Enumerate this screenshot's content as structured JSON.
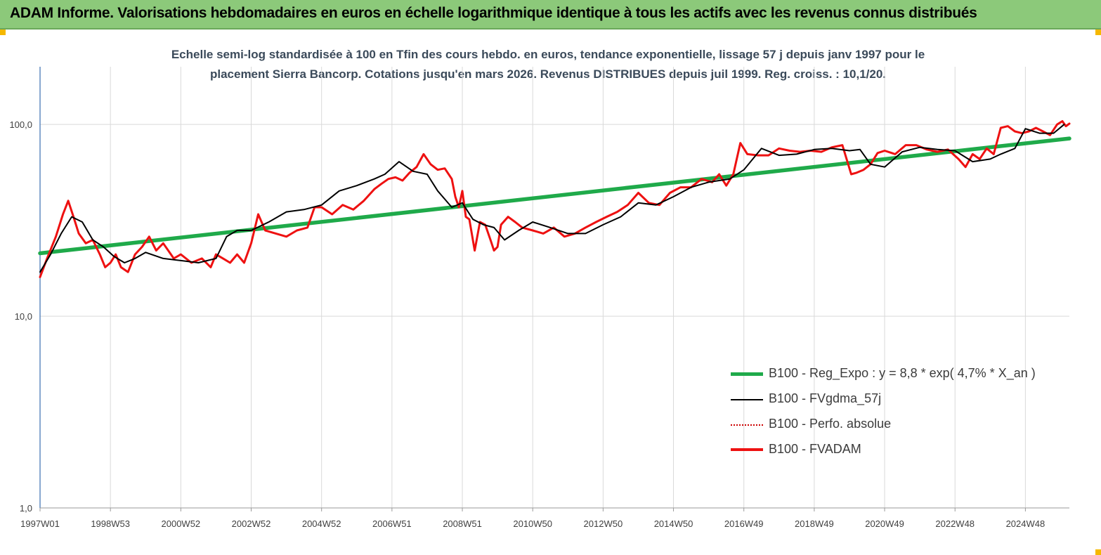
{
  "header": {
    "title": "ADAM Informe. Valorisations hebdomadaires en euros en échelle logarithmique identique à tous les actifs avec les revenus connus distribués"
  },
  "colors": {
    "header_bg": "#8cc97a",
    "regression": "#1faa4a",
    "fvgdma": "#000000",
    "fvadam": "#ee1111",
    "perfo": "#cc0000",
    "grid": "#d9d9d9"
  },
  "chart_data": {
    "type": "line",
    "title_line1": "Echelle semi-log standardisée à 100 en Tfin des cours hebdo. en euros, tendance exponentielle, lissage 57 j depuis janv 1997 pour le",
    "title_line2": "placement Sierra Bancorp. Cotations jusqu'en mars 2026. Revenus DISTRIBUES depuis juil 1999. Reg. croiss. : 10,1/20.",
    "y_scale": "log",
    "ylim": [
      1,
      200
    ],
    "xlim": [
      1997.0,
      2026.25
    ],
    "y_ticks": [
      {
        "value": 1,
        "label": "1,0"
      },
      {
        "value": 10,
        "label": "10,0"
      },
      {
        "value": 100,
        "label": "100,0"
      }
    ],
    "x_ticks": [
      {
        "value": 1997.0,
        "label": "1997W01"
      },
      {
        "value": 1999.0,
        "label": "1998W53"
      },
      {
        "value": 2001.0,
        "label": "2000W52"
      },
      {
        "value": 2003.0,
        "label": "2002W52"
      },
      {
        "value": 2005.0,
        "label": "2004W52"
      },
      {
        "value": 2007.0,
        "label": "2006W51"
      },
      {
        "value": 2009.0,
        "label": "2008W51"
      },
      {
        "value": 2011.0,
        "label": "2010W50"
      },
      {
        "value": 2013.0,
        "label": "2012W50"
      },
      {
        "value": 2015.0,
        "label": "2014W50"
      },
      {
        "value": 2017.0,
        "label": "2016W49"
      },
      {
        "value": 2019.0,
        "label": "2018W49"
      },
      {
        "value": 2021.0,
        "label": "2020W49"
      },
      {
        "value": 2023.0,
        "label": "2022W48"
      },
      {
        "value": 2025.0,
        "label": "2024W48"
      }
    ],
    "grid": "vertical",
    "legend_position": "bottom-right",
    "series": [
      {
        "name": "B100 - Reg_Expo : y = 8,8 * exp( 4,7% *  X_an )",
        "color": "#1faa4a",
        "style": "thick",
        "x": [
          1997.0,
          2026.25
        ],
        "values": [
          21.3,
          84.5
        ]
      },
      {
        "name": "B100 - FVgdma_57j",
        "color": "#000000",
        "style": "thin",
        "x": [
          1997.0,
          1997.3,
          1997.6,
          1997.9,
          1998.2,
          1998.5,
          1998.8,
          1999.1,
          1999.4,
          1999.7,
          2000.0,
          2000.5,
          2001.0,
          2001.5,
          2002.0,
          2002.3,
          2002.6,
          2003.0,
          2003.5,
          2004.0,
          2004.5,
          2005.0,
          2005.5,
          2006.0,
          2006.5,
          2006.8,
          2007.2,
          2007.6,
          2008.0,
          2008.3,
          2008.7,
          2009.0,
          2009.3,
          2009.6,
          2009.9,
          2010.2,
          2010.6,
          2011.0,
          2011.5,
          2012.0,
          2012.5,
          2013.0,
          2013.5,
          2014.0,
          2014.5,
          2015.0,
          2015.5,
          2016.0,
          2016.3,
          2016.6,
          2017.0,
          2017.5,
          2018.0,
          2018.5,
          2019.0,
          2019.5,
          2020.0,
          2020.3,
          2020.6,
          2021.0,
          2021.5,
          2022.0,
          2022.5,
          2023.0,
          2023.5,
          2024.0,
          2024.3,
          2024.7,
          2025.0,
          2025.4,
          2025.8,
          2026.1
        ],
        "values": [
          17,
          21,
          27,
          33,
          31,
          25,
          23,
          20.5,
          19,
          20,
          21.5,
          20,
          19.5,
          19,
          20,
          26,
          28,
          28,
          31,
          35,
          36,
          38,
          45,
          48,
          52,
          55,
          64,
          57,
          55,
          45,
          37,
          39,
          32,
          30,
          29,
          25,
          28,
          31,
          29,
          27,
          27,
          30,
          33,
          39,
          38,
          42,
          47,
          50,
          51,
          52,
          58,
          75,
          69,
          70,
          74,
          75,
          73,
          74,
          62,
          60,
          72,
          76,
          74,
          73,
          64,
          66,
          70,
          75,
          95,
          90,
          90,
          100
        ]
      },
      {
        "name": "B100 - Perfo. absolue",
        "color": "#cc0000",
        "style": "dotted",
        "x": [],
        "values": []
      },
      {
        "name": "B100 - FVADAM",
        "color": "#ee1111",
        "style": "thick",
        "x": [
          1997.0,
          1997.2,
          1997.45,
          1997.65,
          1997.8,
          1997.95,
          1998.1,
          1998.3,
          1998.5,
          1998.7,
          1998.85,
          1999.0,
          1999.15,
          1999.3,
          1999.5,
          1999.7,
          1999.9,
          2000.1,
          2000.3,
          2000.5,
          2000.8,
          2001.0,
          2001.3,
          2001.6,
          2001.85,
          2002.0,
          2002.2,
          2002.4,
          2002.6,
          2002.8,
          2003.0,
          2003.2,
          2003.4,
          2003.7,
          2004.0,
          2004.3,
          2004.6,
          2004.8,
          2005.0,
          2005.3,
          2005.6,
          2005.9,
          2006.2,
          2006.5,
          2006.7,
          2006.9,
          2007.1,
          2007.3,
          2007.5,
          2007.7,
          2007.9,
          2008.1,
          2008.3,
          2008.5,
          2008.7,
          2008.8,
          2008.9,
          2009.0,
          2009.1,
          2009.2,
          2009.35,
          2009.5,
          2009.65,
          2009.8,
          2009.9,
          2010.0,
          2010.1,
          2010.3,
          2010.5,
          2010.7,
          2011.0,
          2011.3,
          2011.6,
          2011.9,
          2012.2,
          2012.5,
          2012.8,
          2013.1,
          2013.4,
          2013.7,
          2014.0,
          2014.3,
          2014.6,
          2014.9,
          2015.2,
          2015.5,
          2015.8,
          2016.1,
          2016.3,
          2016.5,
          2016.7,
          2016.9,
          2017.1,
          2017.4,
          2017.7,
          2018.0,
          2018.3,
          2018.6,
          2018.9,
          2019.2,
          2019.5,
          2019.8,
          2020.05,
          2020.2,
          2020.4,
          2020.6,
          2020.8,
          2021.0,
          2021.3,
          2021.6,
          2021.9,
          2022.2,
          2022.5,
          2022.8,
          2023.1,
          2023.3,
          2023.5,
          2023.7,
          2023.9,
          2024.1,
          2024.3,
          2024.5,
          2024.7,
          2024.9,
          2025.1,
          2025.3,
          2025.5,
          2025.7,
          2025.9,
          2026.05,
          2026.15,
          2026.25
        ],
        "values": [
          16,
          20,
          26,
          34,
          40,
          33,
          27,
          24,
          25,
          21,
          18,
          19,
          21,
          18,
          17,
          21,
          23,
          26,
          22,
          24,
          20,
          21,
          19,
          20,
          18,
          21,
          20,
          19,
          21,
          19,
          24,
          34,
          28,
          27,
          26,
          28,
          29,
          37,
          37,
          34,
          38,
          36,
          40,
          46,
          49,
          52,
          53,
          51,
          56,
          60,
          70,
          62,
          58,
          59,
          52,
          42,
          37,
          45,
          33,
          32,
          22,
          31,
          30,
          25,
          22,
          23,
          30,
          33,
          31,
          29,
          28,
          27,
          29,
          26,
          27,
          29,
          31,
          33,
          35,
          38,
          44,
          39,
          38,
          44,
          47,
          47,
          52,
          50,
          55,
          48,
          55,
          80,
          70,
          69,
          69,
          75,
          73,
          72,
          73,
          72,
          76,
          78,
          55,
          56,
          58,
          62,
          71,
          73,
          70,
          78,
          78,
          74,
          72,
          74,
          66,
          60,
          70,
          66,
          75,
          70,
          96,
          98,
          92,
          90,
          92,
          96,
          92,
          88,
          100,
          104,
          98,
          101
        ]
      }
    ]
  }
}
